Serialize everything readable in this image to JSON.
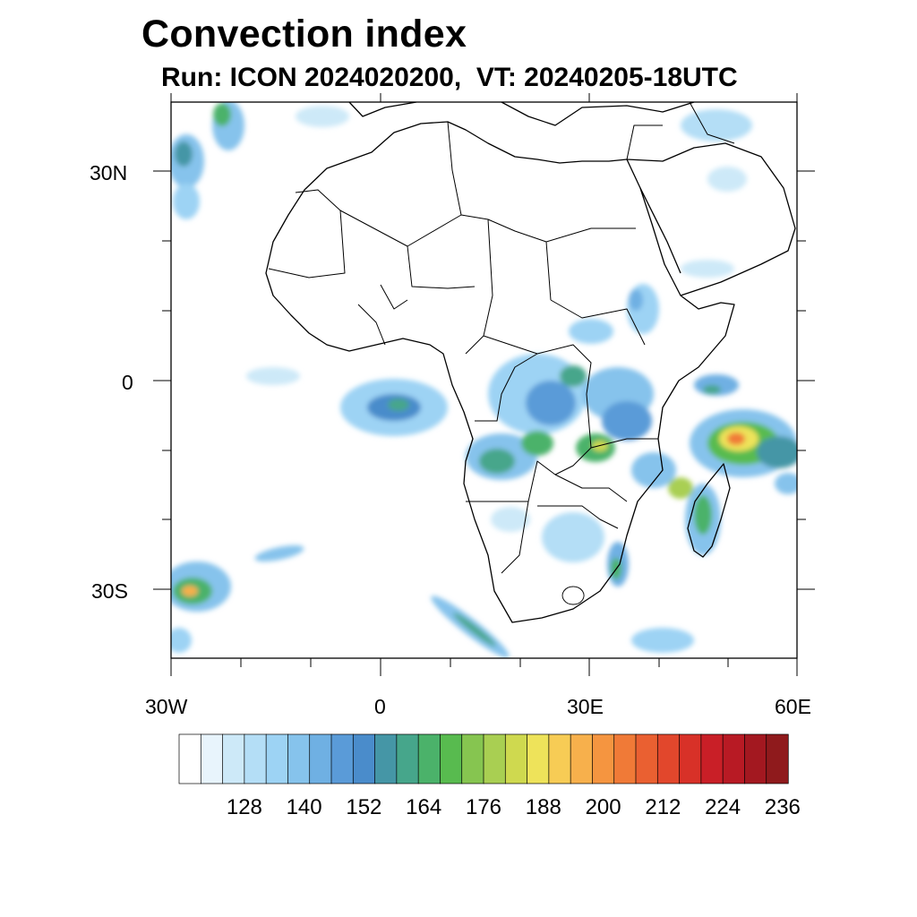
{
  "title": "Convection index",
  "subtitle": "Run: ICON 2024020200,  VT: 20240205-18UTC",
  "map": {
    "projection": "cylindrical equidistant",
    "lon_range": [
      -30,
      60
    ],
    "lat_range": [
      -40,
      40
    ],
    "lon_tick_labels": [
      {
        "lon": -30,
        "text": "30W"
      },
      {
        "lon": 0,
        "text": "0"
      },
      {
        "lon": 30,
        "text": "30E"
      },
      {
        "lon": 60,
        "text": "60E"
      }
    ],
    "lat_tick_labels": [
      {
        "lat": 30,
        "text": "30N"
      },
      {
        "lat": 0,
        "text": "0"
      },
      {
        "lat": -30,
        "text": "30S"
      }
    ],
    "coastline_color": "#000000"
  },
  "colorbar": {
    "colors": [
      "#ffffff",
      "#e8f4fc",
      "#cde9f8",
      "#b4def6",
      "#9dd3f4",
      "#86c3ec",
      "#6fb0e3",
      "#5a9bd8",
      "#4a8ccb",
      "#4596a6",
      "#46a68b",
      "#4bb26a",
      "#58bb4f",
      "#86c550",
      "#a9cf52",
      "#cfd94f",
      "#eee35a",
      "#f7cc55",
      "#f7b04c",
      "#f59540",
      "#f07a37",
      "#ea6031",
      "#e2472c",
      "#d83128",
      "#c91f27",
      "#b81a24",
      "#a31820",
      "#8f1a1c"
    ],
    "labels": [
      "128",
      "140",
      "152",
      "164",
      "176",
      "188",
      "200",
      "212",
      "224",
      "236"
    ]
  }
}
